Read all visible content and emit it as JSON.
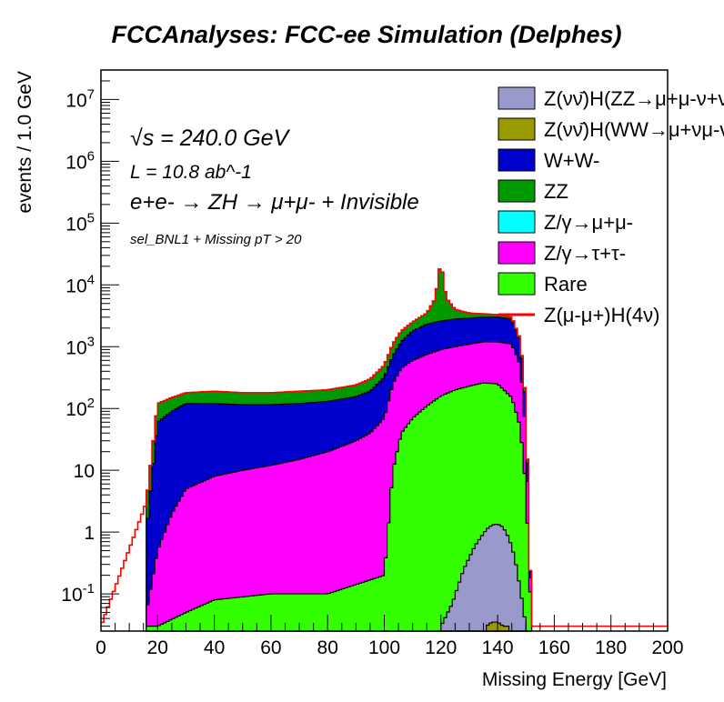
{
  "chart_data": {
    "type": "area",
    "title": "FCCAnalyses: FCC-ee Simulation (Delphes)",
    "xlabel": "Missing Energy [GeV]",
    "ylabel": "events / 1.0 GeV",
    "xlim": [
      0,
      200
    ],
    "ylim": [
      0.025,
      30000000
    ],
    "yscale": "log",
    "xticks": [
      "0",
      "20",
      "40",
      "60",
      "80",
      "100",
      "120",
      "140",
      "160",
      "180",
      "200"
    ],
    "yticks": [
      "10^-1",
      "1",
      "10",
      "10^2",
      "10^3",
      "10^4",
      "10^5",
      "10^6",
      "10^7"
    ],
    "annotations": {
      "sqrt_s": "√s = 240.0 GeV",
      "lumi": "L = 10.8 ab^-1",
      "process": "e+e- → ZH → μ+μ- + Invisible",
      "selection": "sel_BNL1 + Missing pT > 20"
    },
    "legend_position": "top-right",
    "x_bin_edges_note": "1 GeV bins",
    "series": [
      {
        "name": "Z(νν̄)H(ZZ→μ+μ-ν+ν-)",
        "color": "#9999cc",
        "x": [
          120,
          124,
          128,
          132,
          136,
          138,
          140,
          142,
          144,
          146,
          148,
          150
        ],
        "y": [
          0.03,
          0.07,
          0.25,
          0.6,
          1.1,
          1.3,
          1.35,
          1.2,
          0.8,
          0.4,
          0.12,
          0.03
        ]
      },
      {
        "name": "Z(νν̄)H(WW→μ+νμ-ν)",
        "color": "#999900",
        "x": [
          136,
          138,
          140,
          142,
          144
        ],
        "y": [
          0.03,
          0.035,
          0.035,
          0.03,
          0.03
        ]
      },
      {
        "name": "W+W-",
        "color": "#0000cc",
        "x": [
          16,
          20,
          25,
          30,
          40,
          50,
          60,
          70,
          80,
          90,
          95,
          100,
          103,
          106,
          110,
          115,
          120,
          125,
          130,
          135,
          140,
          145,
          148,
          150,
          152
        ],
        "y": [
          1,
          60,
          90,
          120,
          120,
          115,
          115,
          120,
          130,
          155,
          190,
          320,
          700,
          1200,
          1800,
          2300,
          2600,
          2800,
          2900,
          3000,
          3000,
          2800,
          1200,
          100,
          0.03
        ]
      },
      {
        "name": "ZZ",
        "color": "#009900",
        "x": [
          16,
          20,
          25,
          30,
          40,
          50,
          60,
          70,
          80,
          90,
          95,
          100,
          103,
          106,
          110,
          115,
          118,
          120,
          121,
          122,
          125,
          130,
          140,
          145,
          148,
          150,
          152
        ],
        "y": [
          3,
          120,
          150,
          180,
          190,
          180,
          180,
          190,
          200,
          240,
          300,
          500,
          1100,
          1800,
          2500,
          3500,
          6000,
          26000,
          10000,
          6000,
          4000,
          3500,
          3300,
          3000,
          1300,
          120,
          0.03
        ]
      },
      {
        "name": "Z/γ→μ+μ-",
        "color": "#00ffff",
        "x": [],
        "y": []
      },
      {
        "name": "Z/γ→τ+τ-",
        "color": "#ff00ff",
        "x": [
          16,
          20,
          25,
          30,
          40,
          50,
          60,
          70,
          80,
          90,
          95,
          100,
          103,
          106,
          110,
          115,
          120,
          125,
          130,
          135,
          140,
          145,
          148,
          150,
          152
        ],
        "y": [
          0.05,
          0.5,
          2,
          5,
          8,
          10,
          12,
          15,
          20,
          30,
          40,
          70,
          250,
          450,
          600,
          750,
          900,
          1000,
          1100,
          1200,
          1200,
          1100,
          500,
          40,
          0.03
        ]
      },
      {
        "name": "Rare",
        "color": "#33ff00",
        "x": [
          16,
          20,
          30,
          40,
          60,
          80,
          100,
          103,
          106,
          110,
          115,
          120,
          125,
          130,
          135,
          140,
          145,
          148,
          150,
          152
        ],
        "y": [
          0.03,
          0.03,
          0.05,
          0.08,
          0.1,
          0.1,
          0.2,
          10,
          40,
          70,
          110,
          160,
          200,
          230,
          260,
          250,
          150,
          50,
          5,
          0.03
        ]
      },
      {
        "name": "Z(μ-μ+)H(4ν)",
        "color": "#ff0000",
        "x": [
          0,
          16,
          20,
          25,
          30,
          40,
          50,
          60,
          70,
          80,
          90,
          95,
          100,
          103,
          106,
          110,
          115,
          118,
          120,
          121,
          122,
          125,
          130,
          140,
          145,
          148,
          150,
          152,
          200
        ],
        "y": [
          0.03,
          3,
          120,
          150,
          180,
          190,
          180,
          180,
          190,
          200,
          240,
          300,
          500,
          1100,
          1800,
          2500,
          3500,
          6000,
          26000,
          10000,
          6000,
          4000,
          3500,
          3300,
          3000,
          1300,
          120,
          0.03,
          0.03
        ]
      }
    ]
  }
}
